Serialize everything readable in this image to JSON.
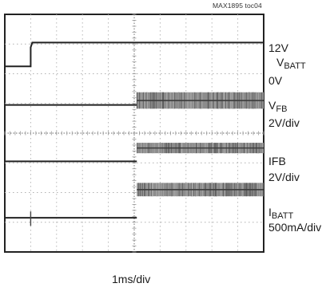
{
  "figure_tag": "MAX1895 toc04",
  "chart_data": {
    "type": "line",
    "xlabel": "1ms/div",
    "grid": true,
    "grid_divisions": {
      "x": 10,
      "y": 8
    },
    "xlim_div": [
      0,
      10
    ],
    "ylim_div": [
      0,
      8
    ],
    "event_time_div": 1.0,
    "step_time_div": 5.1,
    "series": [
      {
        "key": "vbatt",
        "label_top": "12V",
        "label_main": "V",
        "label_sub": "BATT",
        "label_bottom": "0V",
        "base_div": 6.25,
        "level_div": 7.05,
        "noise_div": 0
      },
      {
        "key": "vfb",
        "label_main": "V",
        "label_sub": "FB",
        "scale": "2V/div",
        "base_div": 4.95,
        "level_div": 5.1,
        "noise_div": 0.55
      },
      {
        "key": "ifb",
        "label_main": "IFB",
        "scale": "2V/div",
        "base_div": 3.05,
        "level_div": 3.5,
        "noise_div": 0.35
      },
      {
        "key": "ibatt",
        "label_main": "I",
        "label_sub": "BATT",
        "scale": "500mA/div",
        "base_div": 1.15,
        "level_div": 2.1,
        "noise_div": 0.45
      }
    ]
  }
}
